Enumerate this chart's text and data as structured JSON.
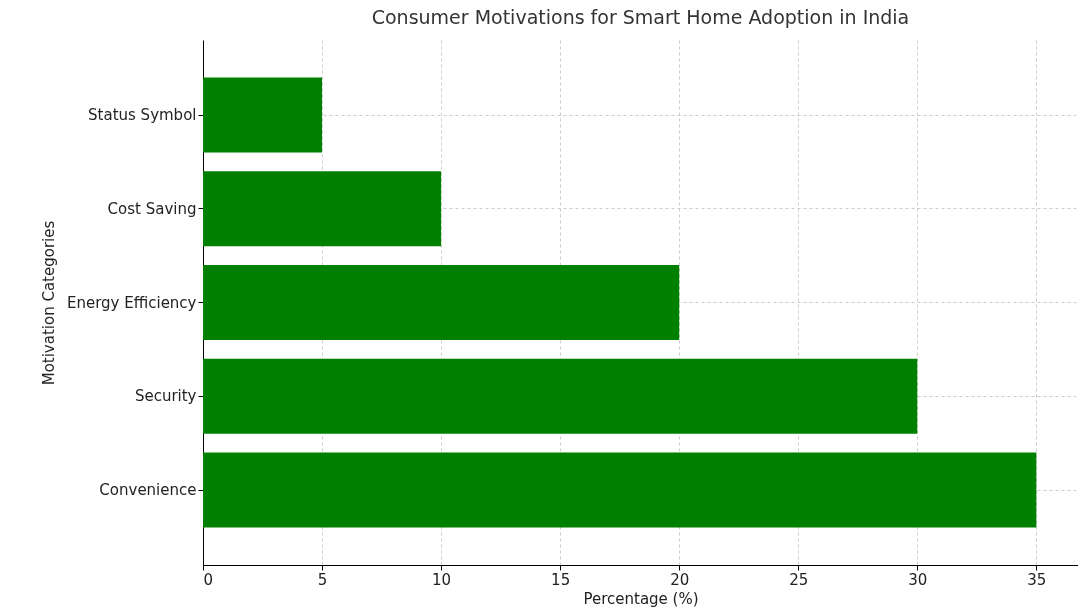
{
  "chart_data": {
    "type": "bar",
    "orientation": "horizontal",
    "title": "Consumer Motivations for Smart Home Adoption in India",
    "xlabel": "Percentage (%)",
    "ylabel": "Motivation Categories",
    "categories": [
      "Status Symbol",
      "Cost Saving",
      "Energy Efficiency",
      "Security",
      "Convenience"
    ],
    "values": [
      5,
      10,
      20,
      30,
      35
    ],
    "color": "#008000",
    "xlim": [
      0,
      36.75
    ],
    "xticks": [
      0,
      5,
      10,
      15,
      20,
      25,
      30,
      35
    ],
    "grid": true
  }
}
